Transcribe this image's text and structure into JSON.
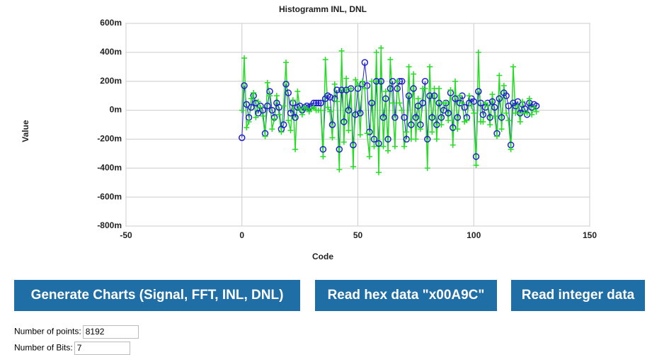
{
  "chart_data": {
    "type": "line",
    "title": "Histogramm INL, DNL",
    "x_label": "Code",
    "y_label": "Value",
    "grid": true,
    "xlim": [
      -50,
      150
    ],
    "xticks": [
      -50,
      0,
      50,
      100,
      150
    ],
    "ylim": [
      -0.8,
      0.6
    ],
    "yticks": [
      {
        "value": -0.8,
        "label": "-800m"
      },
      {
        "value": -0.6,
        "label": "-600m"
      },
      {
        "value": -0.4,
        "label": "-400m"
      },
      {
        "value": -0.2,
        "label": "-200m"
      },
      {
        "value": 0,
        "label": "0m"
      },
      {
        "value": 0.2,
        "label": "200m"
      },
      {
        "value": 0.4,
        "label": "400m"
      },
      {
        "value": 0.6,
        "label": "600m"
      }
    ],
    "x": [
      0,
      1,
      2,
      3,
      4,
      5,
      6,
      7,
      8,
      9,
      10,
      11,
      12,
      13,
      14,
      15,
      16,
      17,
      18,
      19,
      20,
      21,
      22,
      23,
      24,
      25,
      26,
      27,
      28,
      29,
      30,
      31,
      32,
      33,
      34,
      35,
      36,
      37,
      38,
      39,
      40,
      41,
      42,
      43,
      44,
      45,
      46,
      47,
      48,
      49,
      50,
      51,
      52,
      53,
      54,
      55,
      56,
      57,
      58,
      59,
      60,
      61,
      62,
      63,
      64,
      65,
      66,
      67,
      68,
      69,
      70,
      71,
      72,
      73,
      74,
      75,
      76,
      77,
      78,
      79,
      80,
      81,
      82,
      83,
      84,
      85,
      86,
      87,
      88,
      89,
      90,
      91,
      92,
      93,
      94,
      95,
      96,
      97,
      98,
      99,
      100,
      101,
      102,
      103,
      104,
      105,
      106,
      107,
      108,
      109,
      110,
      111,
      112,
      113,
      114,
      115,
      116,
      117,
      118,
      119,
      120,
      121,
      122,
      123,
      124,
      125,
      126,
      127
    ],
    "series": [
      {
        "color": "#2020d0",
        "marker": "circle",
        "values": [
          -0.19,
          0.17,
          0.04,
          -0.05,
          0.02,
          0.1,
          0.05,
          -0.02,
          0.03,
          0,
          -0.16,
          0.03,
          0.13,
          0,
          -0.05,
          0.05,
          0.02,
          -0.13,
          -0.1,
          0.18,
          0.12,
          -0.02,
          0.05,
          -0.05,
          0.02,
          0.03,
          0,
          0.02,
          0.03,
          0.02,
          0.03,
          0.05,
          0.05,
          0.05,
          0.05,
          -0.27,
          0.08,
          0.1,
          0.09,
          -0.1,
          0.08,
          0.14,
          -0.27,
          0.14,
          -0.08,
          0.14,
          0,
          0.15,
          -0.24,
          -0.03,
          0.15,
          -0.02,
          0.18,
          0.33,
          0.17,
          -0.15,
          0.05,
          -0.2,
          0.2,
          -0.23,
          0.2,
          -0.05,
          0.08,
          -0.2,
          0.15,
          0.2,
          -0.05,
          0.15,
          0.2,
          0.2,
          -0.05,
          -0.2,
          0.1,
          -0.1,
          0.15,
          -0.05,
          0.03,
          -0.1,
          0.05,
          0.2,
          -0.2,
          0.1,
          -0.05,
          0.1,
          -0.1,
          0.05,
          -0.05,
          0,
          0.05,
          -0.02,
          0.12,
          -0.12,
          0.08,
          -0.05,
          0.05,
          0.1,
          0.02,
          -0.05,
          0.05,
          0.08,
          0.06,
          -0.32,
          0.13,
          0.05,
          -0.03,
          0.02,
          0.05,
          -0.05,
          0.06,
          0.02,
          -0.16,
          0.08,
          -0.05,
          0.12,
          0.1,
          0.03,
          -0.24,
          0.05,
          0.03,
          0.06,
          -0.02,
          0.04,
          0.01,
          -0.03,
          0.05,
          0.02,
          0.04,
          0.03
        ]
      },
      {
        "color": "#22dd22",
        "marker": "plus",
        "values": [
          0,
          0.36,
          -0.12,
          -0.08,
          0.08,
          0.12,
          -0.05,
          0.06,
          0.02,
          -0.04,
          -0.18,
          0.19,
          0.1,
          -0.13,
          -0.06,
          0.1,
          -0.03,
          -0.15,
          0.03,
          0.33,
          -0.07,
          -0.14,
          0.07,
          -0.27,
          0.13,
          0.01,
          -0.03,
          0.02,
          0.01,
          -0.01,
          0.01,
          0.02,
          0,
          0,
          0,
          -0.32,
          0.35,
          0.02,
          -0.01,
          -0.19,
          0.18,
          0.06,
          -0.41,
          0.41,
          -0.22,
          0.22,
          -0.14,
          0.15,
          -0.39,
          0.21,
          0.18,
          -0.17,
          0.2,
          0.15,
          -0.16,
          -0.32,
          0.2,
          -0.25,
          0.4,
          -0.43,
          0.43,
          -0.25,
          0.13,
          -0.28,
          0.35,
          0.05,
          -0.25,
          0.2,
          0.05,
          0,
          -0.25,
          -0.15,
          0.3,
          -0.2,
          0.25,
          -0.2,
          0.08,
          -0.13,
          0.15,
          0.15,
          -0.4,
          0.3,
          -0.15,
          0.15,
          -0.2,
          0.15,
          -0.1,
          0.05,
          0.05,
          -0.07,
          0.14,
          -0.24,
          0.2,
          -0.13,
          0.1,
          0.05,
          -0.08,
          -0.07,
          0.1,
          0.03,
          -0.02,
          -0.38,
          0.4,
          -0.08,
          -0.08,
          0.05,
          0.03,
          -0.1,
          0.11,
          -0.04,
          -0.18,
          0.24,
          -0.13,
          0.17,
          -0.02,
          -0.07,
          -0.27,
          0.3,
          -0.02,
          0.03,
          -0.08,
          0.06,
          -0.02,
          -0.02,
          0.08,
          -0.03,
          0.02,
          -0.01
        ]
      }
    ]
  },
  "buttons": [
    "Generate Charts (Signal, FFT, INL, DNL)",
    "Read hex data \"x00A9C\"",
    "Read integer data"
  ],
  "fields": [
    {
      "label": "Number of points:",
      "value": "8192"
    },
    {
      "label": "Number of Bits:",
      "value": "7"
    }
  ]
}
